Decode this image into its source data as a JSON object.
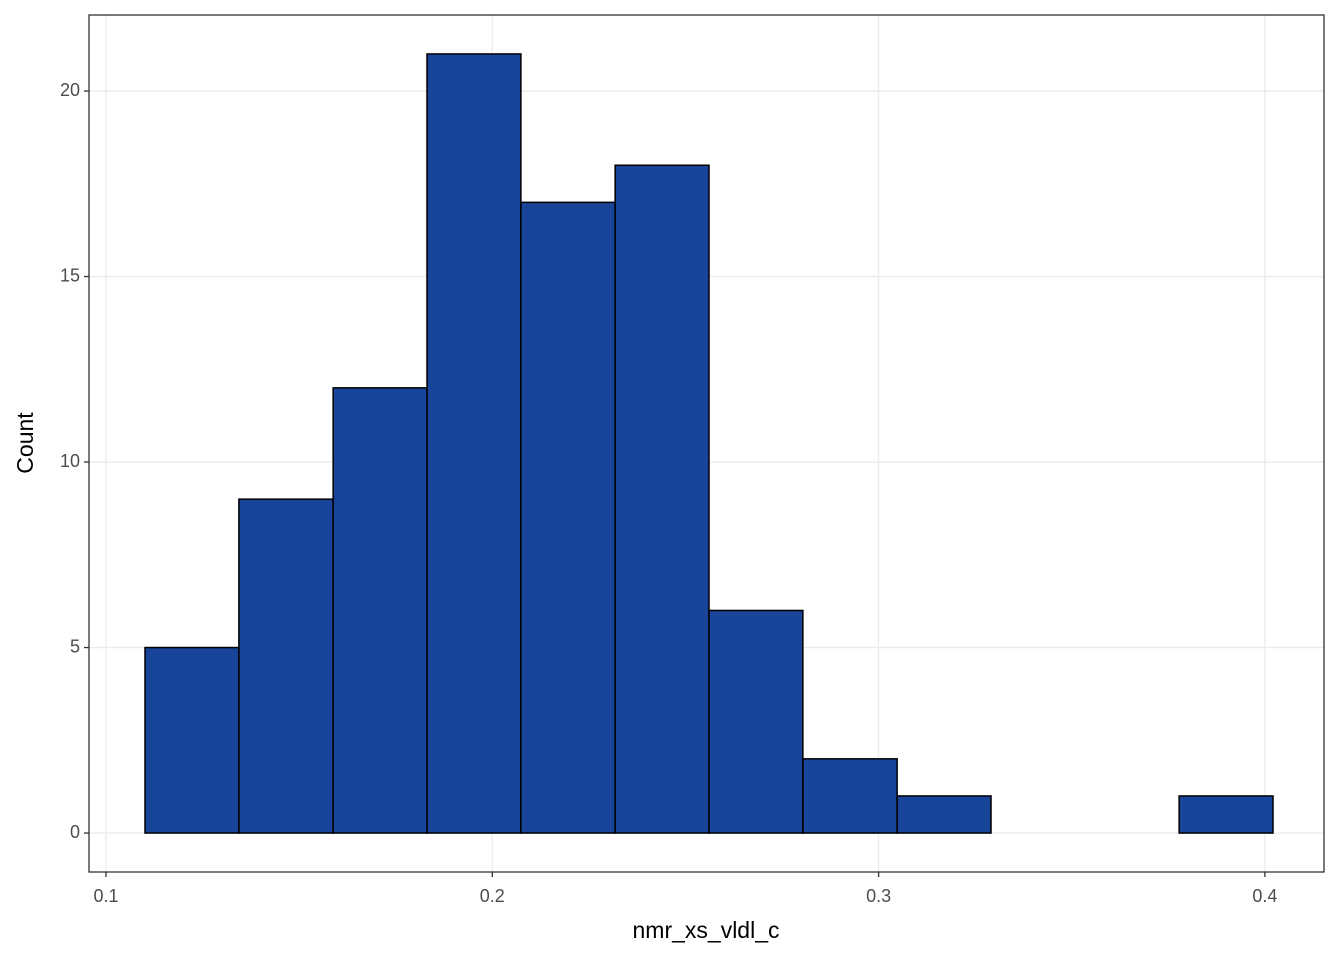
{
  "chart_data": {
    "type": "histogram",
    "x_label": "nmr_xs_vldl_c",
    "y_label": "Count",
    "bins": [
      0.1101,
      0.1344,
      0.1588,
      0.1831,
      0.2074,
      0.2318,
      0.2561,
      0.2804,
      0.3048,
      0.3291,
      0.3534,
      0.3778,
      0.4021
    ],
    "values": [
      5,
      9,
      12,
      21,
      17,
      18,
      6,
      2,
      1,
      0,
      0,
      1
    ],
    "color": "#18449a",
    "xlim": [
      0.0956,
      0.4153
    ],
    "xticks": [
      0.1,
      0.2,
      0.3,
      0.4
    ],
    "ylim": [
      -1.05,
      22.05
    ],
    "yticks": [
      0,
      5,
      10,
      15,
      20
    ],
    "grid": true
  }
}
